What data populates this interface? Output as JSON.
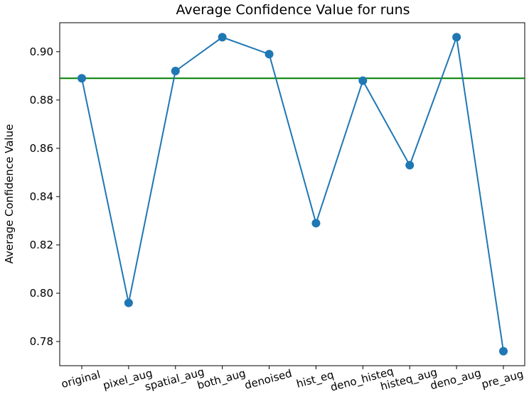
{
  "chart_data": {
    "type": "line",
    "title": "Average Confidence Value for runs",
    "xlabel": "",
    "ylabel": "Average Confidence Value",
    "categories": [
      "original",
      "pixel_aug",
      "spatial_aug",
      "both_aug",
      "denoised",
      "hist_eq",
      "deno_histeq",
      "histeq_aug",
      "deno_aug",
      "pre_aug"
    ],
    "series": [
      {
        "name": "Average Confidence Value",
        "values": [
          0.889,
          0.796,
          0.892,
          0.906,
          0.899,
          0.829,
          0.888,
          0.853,
          0.906,
          0.776
        ],
        "color": "#1f77b4"
      }
    ],
    "reference_line": {
      "value": 0.889,
      "color": "#008000"
    },
    "ylim": [
      0.77,
      0.912
    ],
    "yticks": [
      0.78,
      0.8,
      0.82,
      0.84,
      0.86,
      0.88,
      0.9
    ],
    "ytick_labels": [
      "0.78",
      "0.80",
      "0.82",
      "0.84",
      "0.86",
      "0.88",
      "0.90"
    ],
    "grid": false,
    "legend": "none",
    "x_tick_rotation_deg": -15
  }
}
